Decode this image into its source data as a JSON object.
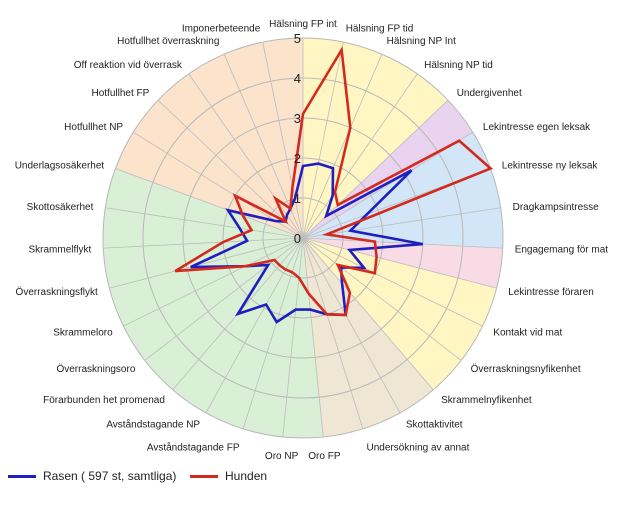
{
  "chart_data": {
    "type": "radar",
    "axes": [
      "Hälsning FP int",
      "Hälsning FP tid",
      "Hälsning NP Int",
      "Hälsning NP tid",
      "Undergivenhet",
      "Lekintresse egen leksak",
      "Lekintresse ny leksak",
      "Dragkampsintresse",
      "Engagemang för mat",
      "Lekintresse föraren",
      "Kontakt vid mat",
      "Överraskningsnyfikenhet",
      "Skrammelnyfikenhet",
      "Skottaktivitet",
      "Undersökning av annat",
      "Oro FP",
      "Oro NP",
      "Avståndstagande FP",
      "Avståndstagande NP",
      "Förarbunden het promenad",
      "Överraskningsoro",
      "Skrammeloro",
      "Överraskningsflykt",
      "Skrammelflykt",
      "Skottosäkerhet",
      "Underlagsosäkerhet",
      "Hotfullhet NP",
      "Hotfullhet FP",
      "Off reaktion vid överrask",
      "Hotfullhet överraskning",
      "Imponerbeteende"
    ],
    "rmax": 5,
    "ticks": [
      "0",
      "1",
      "2",
      "3",
      "4",
      "5"
    ],
    "grid": true,
    "series": [
      {
        "name": "Rasen ( 597 st, samtliga)",
        "color": "#1f1fbf",
        "values": [
          1.8,
          1.9,
          1.9,
          1.3,
          0.8,
          3.2,
          1.7,
          1.2,
          3.0,
          1.2,
          1.7,
          1.2,
          1.5,
          2.2,
          2.0,
          1.8,
          1.8,
          2.2,
          1.9,
          2.5,
          1.1,
          1.6,
          2.9,
          1.4,
          1.6,
          2.0,
          0.8,
          0.6,
          0.7,
          0.8,
          1.0
        ]
      },
      {
        "name": "Hunden",
        "color": "#d42a1e",
        "values": [
          3.1,
          4.8,
          3.0,
          1.4,
          1.2,
          4.6,
          5.0,
          0.6,
          1.8,
          1.9,
          2.0,
          1.1,
          1.8,
          2.2,
          2.0,
          1.4,
          1.0,
          0.9,
          0.9,
          0.9,
          0.9,
          1.6,
          3.3,
          2.0,
          1.3,
          1.6,
          2.0,
          0.6,
          1.2,
          0.8,
          1.3
        ]
      }
    ],
    "sectors": [
      {
        "from": 0,
        "to": 4,
        "color": "#fff6c4"
      },
      {
        "from": 4,
        "to": 5,
        "color": "#e9d3ef"
      },
      {
        "from": 5,
        "to": 8,
        "color": "#d2e6f7"
      },
      {
        "from": 8,
        "to": 9,
        "color": "#f9dbe6"
      },
      {
        "from": 9,
        "to": 12,
        "color": "#fff6c4"
      },
      {
        "from": 12,
        "to": 15,
        "color": "#efe6d3"
      },
      {
        "from": 15,
        "to": 25,
        "color": "#d9f0d6"
      },
      {
        "from": 25,
        "to": 31,
        "color": "#fbe3cc"
      }
    ],
    "legend": "bottom-left"
  }
}
